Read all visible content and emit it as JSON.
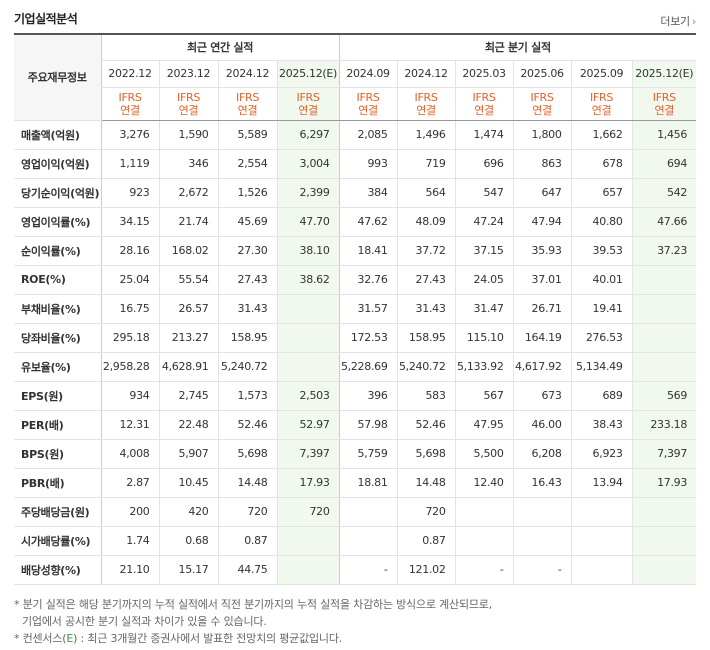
{
  "title": "기업실적분석",
  "more_label": "더보기",
  "more_arrow": "›",
  "header": {
    "row_label": "주요재무정보",
    "annual_group": "최근 연간 실적",
    "quarter_group": "최근 분기 실적",
    "annual_cols": [
      "2022.12",
      "2023.12",
      "2024.12",
      "2025.12(E)"
    ],
    "quarter_cols": [
      "2024.09",
      "2024.12",
      "2025.03",
      "2025.06",
      "2025.09",
      "2025.12(E)"
    ],
    "basis_top": "IFRS",
    "basis_bottom": "연결"
  },
  "rows": [
    {
      "label": "매출액(억원)",
      "sec": true,
      "values": [
        "3,276",
        "1,590",
        "5,589",
        "6,297",
        "2,085",
        "1,496",
        "1,474",
        "1,800",
        "1,662",
        "1,456"
      ]
    },
    {
      "label": "영업이익(억원)",
      "values": [
        "1,119",
        "346",
        "2,554",
        "3,004",
        "993",
        "719",
        "696",
        "863",
        "678",
        "694"
      ]
    },
    {
      "label": "당기순이익(억원)",
      "values": [
        "923",
        "2,672",
        "1,526",
        "2,399",
        "384",
        "564",
        "547",
        "647",
        "657",
        "542"
      ]
    },
    {
      "label": "영업이익률(%)",
      "sec": true,
      "values": [
        "34.15",
        "21.74",
        "45.69",
        "47.70",
        "47.62",
        "48.09",
        "47.24",
        "47.94",
        "40.80",
        "47.66"
      ]
    },
    {
      "label": "순이익률(%)",
      "values": [
        "28.16",
        "168.02",
        "27.30",
        "38.10",
        "18.41",
        "37.72",
        "37.15",
        "35.93",
        "39.53",
        "37.23"
      ]
    },
    {
      "label": "ROE(%)",
      "values": [
        "25.04",
        "55.54",
        "27.43",
        "38.62",
        "32.76",
        "27.43",
        "24.05",
        "37.01",
        "40.01",
        ""
      ]
    },
    {
      "label": "부채비율(%)",
      "sec": true,
      "values": [
        "16.75",
        "26.57",
        "31.43",
        "",
        "31.57",
        "31.43",
        "31.47",
        "26.71",
        "19.41",
        ""
      ]
    },
    {
      "label": "당좌비율(%)",
      "values": [
        "295.18",
        "213.27",
        "158.95",
        "",
        "172.53",
        "158.95",
        "115.10",
        "164.19",
        "276.53",
        ""
      ]
    },
    {
      "label": "유보율(%)",
      "values": [
        "2,958.28",
        "4,628.91",
        "5,240.72",
        "",
        "5,228.69",
        "5,240.72",
        "5,133.92",
        "4,617.92",
        "5,134.49",
        ""
      ]
    },
    {
      "label": "EPS(원)",
      "sec": true,
      "values": [
        "934",
        "2,745",
        "1,573",
        "2,503",
        "396",
        "583",
        "567",
        "673",
        "689",
        "569"
      ]
    },
    {
      "label": "PER(배)",
      "values": [
        "12.31",
        "22.48",
        "52.46",
        "52.97",
        "57.98",
        "52.46",
        "47.95",
        "46.00",
        "38.43",
        "233.18"
      ]
    },
    {
      "label": "BPS(원)",
      "values": [
        "4,008",
        "5,907",
        "5,698",
        "7,397",
        "5,759",
        "5,698",
        "5,500",
        "6,208",
        "6,923",
        "7,397"
      ]
    },
    {
      "label": "PBR(배)",
      "values": [
        "2.87",
        "10.45",
        "14.48",
        "17.93",
        "18.81",
        "14.48",
        "12.40",
        "16.43",
        "13.94",
        "17.93"
      ]
    },
    {
      "label": "주당배당금(원)",
      "sec": true,
      "values": [
        "200",
        "420",
        "720",
        "720",
        "",
        "720",
        "",
        "",
        "",
        ""
      ]
    },
    {
      "label": "시가배당률(%)",
      "values": [
        "1.74",
        "0.68",
        "0.87",
        "",
        "",
        "0.87",
        "",
        "",
        "",
        ""
      ]
    },
    {
      "label": "배당성향(%)",
      "values": [
        "21.10",
        "15.17",
        "44.75",
        "",
        "-",
        "121.02",
        "-",
        "-",
        "",
        ""
      ]
    }
  ],
  "notes": {
    "line1": "* 분기 실적은 해당 분기까지의 누적 실적에서 직전 분기까지의 누적 실적을 차감하는 방식으로 계산되므로,",
    "line2": "기업에서 공시한 분기 실적과 차이가 있을 수 있습니다.",
    "line3_pre": "* 컨센서스(",
    "line3_mark": "E",
    "line3_post": ") : 최근 3개월간 증권사에서 발표한 전망치의 평균값입니다."
  },
  "colors": {
    "accent": "#e0612a",
    "estimate_bg": "#f1f9ee",
    "estimate_mark": "#3c9a3c"
  }
}
